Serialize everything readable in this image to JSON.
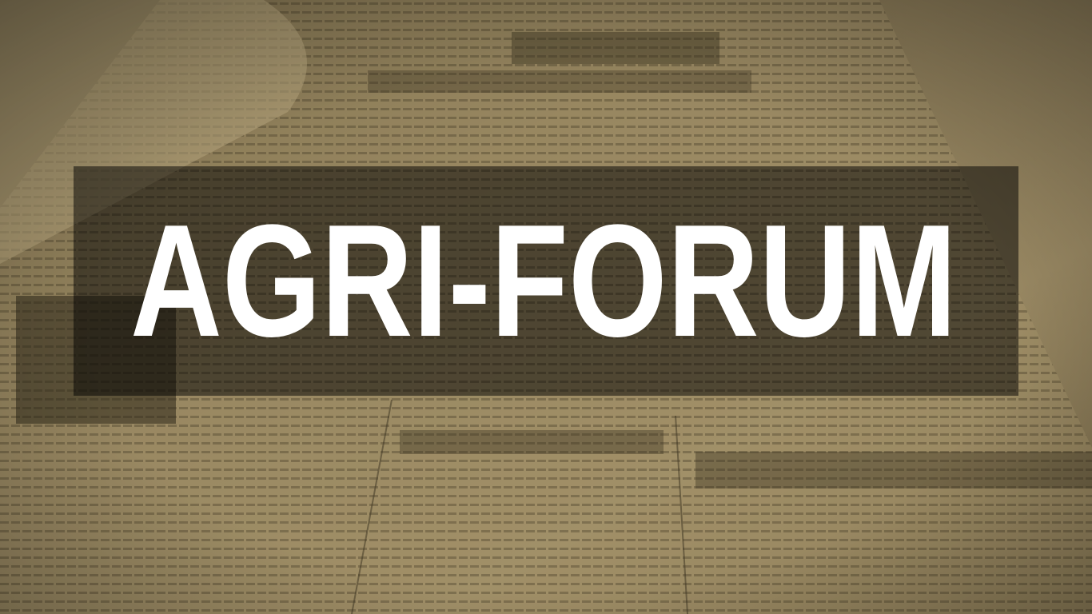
{
  "banner": {
    "title": "AGRI-FORUM"
  }
}
